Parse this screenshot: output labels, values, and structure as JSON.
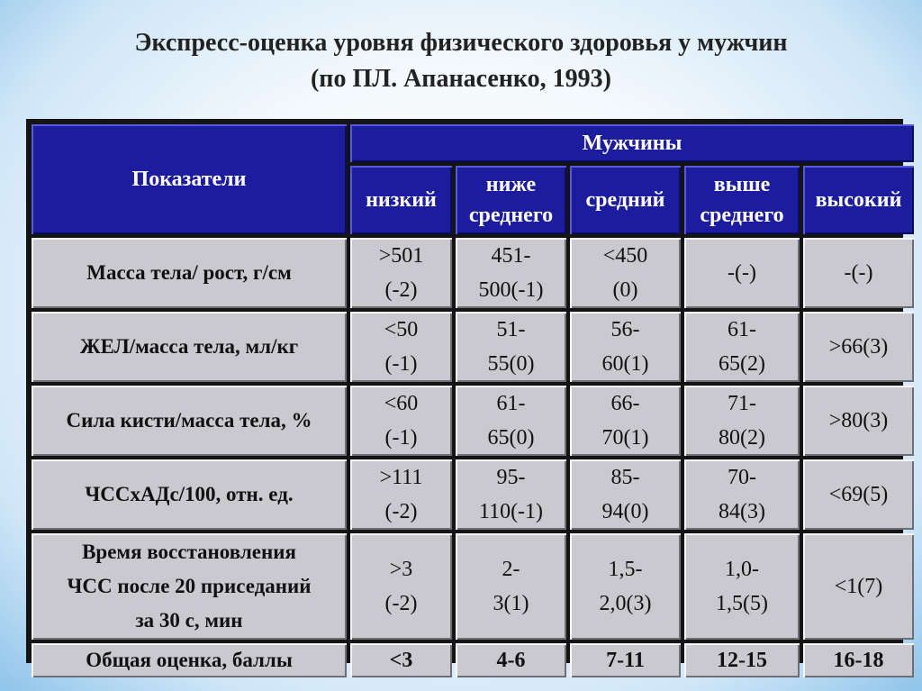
{
  "title": {
    "line1": "Экспресс-оценка уровня физического здоровья у мужчин",
    "line2": "(по ПЛ. Апанасенко, 1993)"
  },
  "table": {
    "param_header": "Показатели",
    "group_header": "Мужчины",
    "levels": [
      [
        "низкий"
      ],
      [
        "ниже",
        "среднего"
      ],
      [
        "средний"
      ],
      [
        "выше",
        "среднего"
      ],
      [
        "высокий"
      ]
    ],
    "rows": [
      {
        "label": [
          "Масса тела/ рост, г/см"
        ],
        "cells": [
          [
            ">501",
            "(-2)"
          ],
          [
            "451-",
            "500(-1)"
          ],
          [
            "<450",
            "(0)"
          ],
          [
            "-(-)"
          ],
          [
            "-(-)"
          ]
        ]
      },
      {
        "label": [
          "ЖЕЛ/масса тела, мл/кг"
        ],
        "cells": [
          [
            "<50",
            "(-1)"
          ],
          [
            "51-",
            "55(0)"
          ],
          [
            "56-",
            "60(1)"
          ],
          [
            "61-",
            "65(2)"
          ],
          [
            ">66(3)"
          ]
        ]
      },
      {
        "label": [
          "Сила кисти/масса тела, %"
        ],
        "cells": [
          [
            "<60",
            "(-1)"
          ],
          [
            "61-",
            "65(0)"
          ],
          [
            "66-",
            "70(1)"
          ],
          [
            "71-",
            "80(2)"
          ],
          [
            ">80(3)"
          ]
        ]
      },
      {
        "label": [
          "ЧССхАДс/100, отн. ед."
        ],
        "cells": [
          [
            ">111",
            "(-2)"
          ],
          [
            "95-",
            "110(-1)"
          ],
          [
            "85-",
            "94(0)"
          ],
          [
            "70-",
            "84(3)"
          ],
          [
            "<69(5)"
          ]
        ]
      },
      {
        "label": [
          "Время восстановления",
          "ЧСС после 20 приседаний",
          "за 30 с, мин"
        ],
        "cells": [
          [
            ">3",
            "(-2)"
          ],
          [
            "2-",
            "3(1)"
          ],
          [
            "1,5-",
            "2,0(3)"
          ],
          [
            "1,0-",
            "1,5(5)"
          ],
          [
            "<1(7)"
          ]
        ]
      }
    ],
    "total_row": {
      "label": "Общая оценка, баллы",
      "cells": [
        "<3",
        "4-6",
        "7-11",
        "12-15",
        "16-18"
      ]
    }
  }
}
